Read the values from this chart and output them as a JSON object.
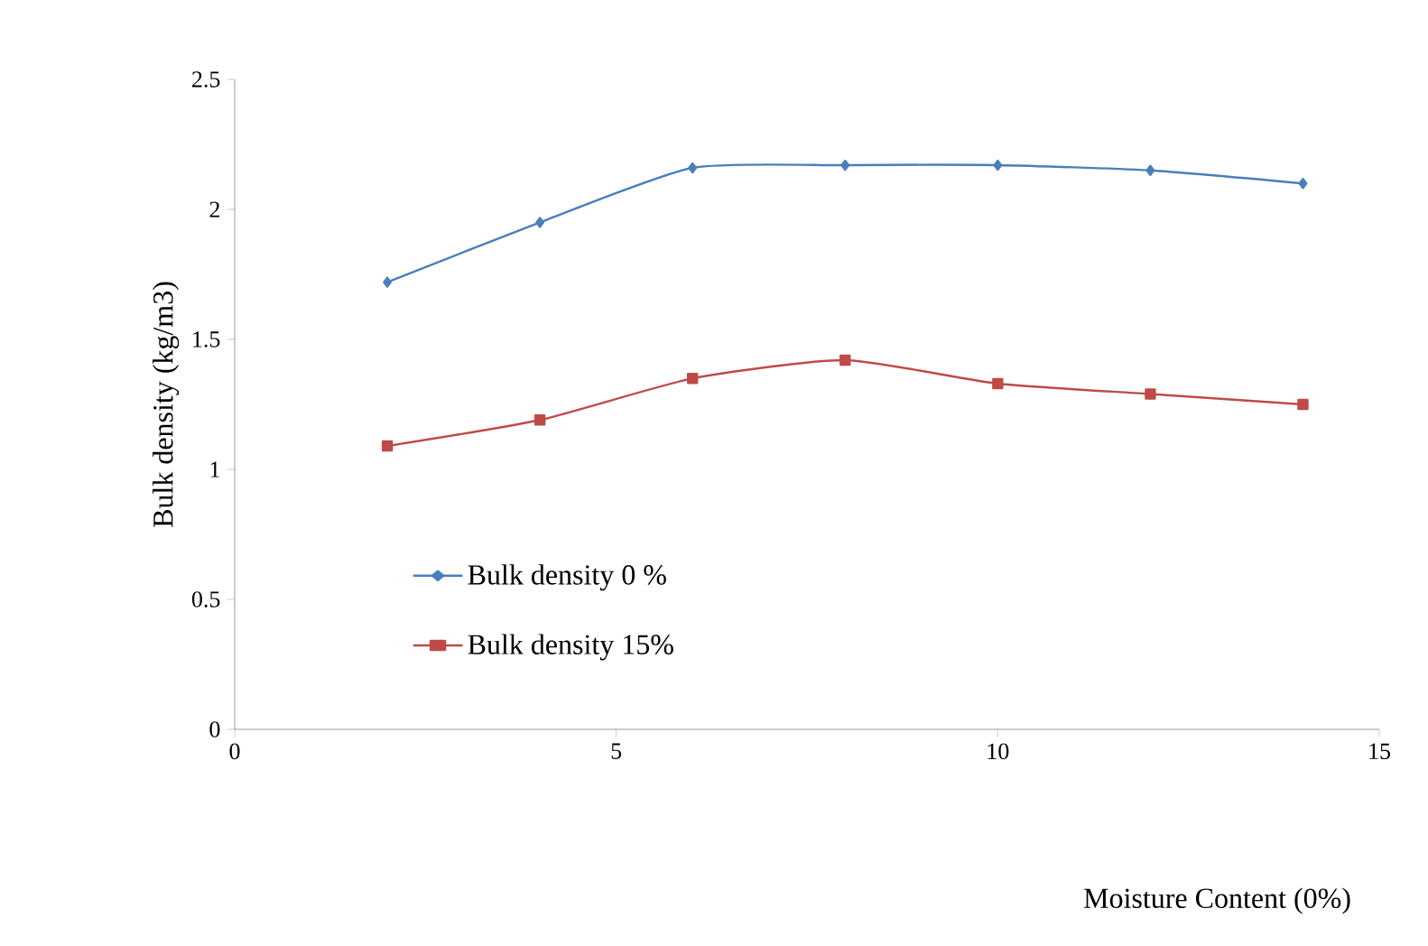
{
  "chart_data": {
    "type": "line",
    "xlabel": "Moisture Content (0%)",
    "ylabel": "Bulk density   (kg/m3)",
    "x": [
      2,
      4,
      6,
      8,
      10,
      12,
      14
    ],
    "series": [
      {
        "name": "Bulk density 0 %",
        "color": "#4a7ebb",
        "marker": "diamond",
        "values": [
          1.72,
          1.95,
          2.16,
          2.17,
          2.17,
          2.15,
          2.1
        ]
      },
      {
        "name": "Bulk density 15%",
        "color": "#be4b48",
        "marker": "square",
        "values": [
          1.09,
          1.19,
          1.35,
          1.42,
          1.33,
          1.29,
          1.25
        ]
      }
    ],
    "xlim": [
      0,
      15
    ],
    "xticks": [
      0,
      5,
      10,
      15
    ],
    "ylim": [
      0,
      2.5
    ],
    "yticks": [
      0,
      0.5,
      1,
      1.5,
      2,
      2.5
    ],
    "grid": false,
    "legend": "bottom left"
  }
}
